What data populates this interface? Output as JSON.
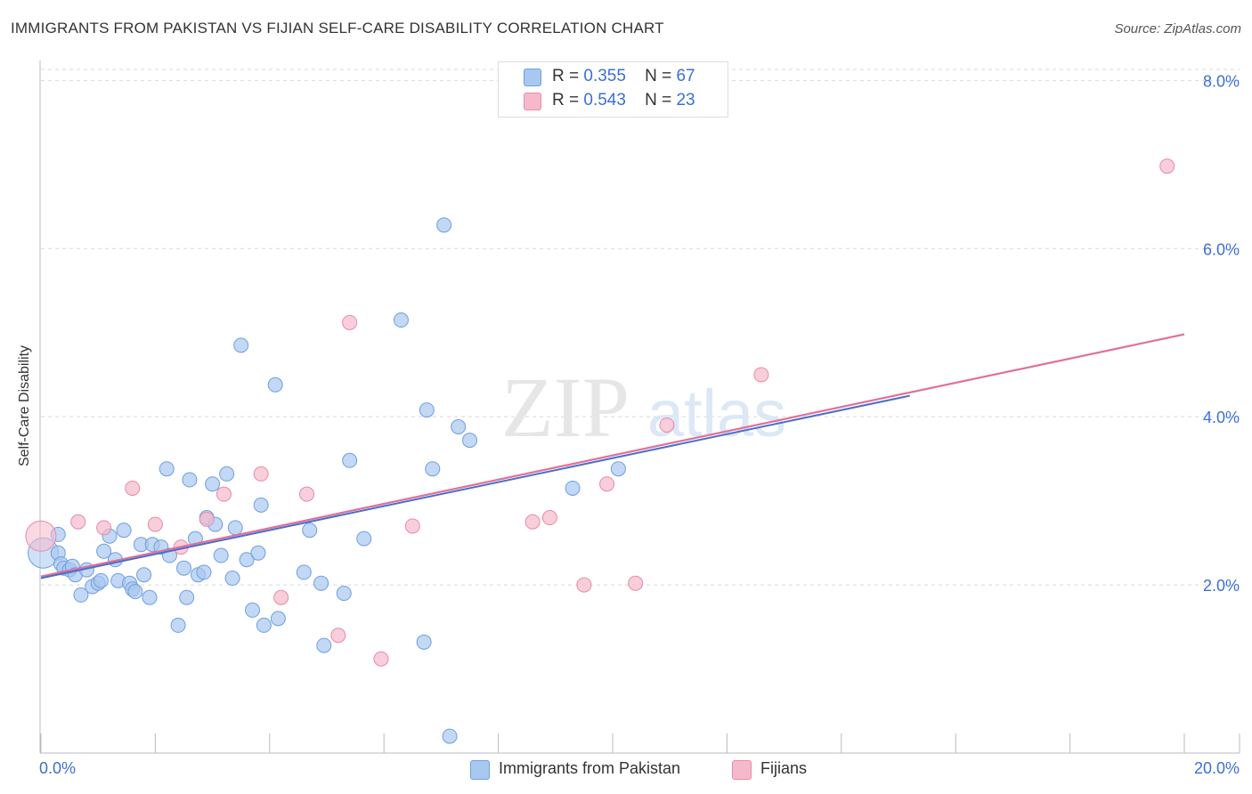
{
  "header": {
    "title": "IMMIGRANTS FROM PAKISTAN VS FIJIAN SELF-CARE DISABILITY CORRELATION CHART",
    "source": "Source: ZipAtlas.com"
  },
  "watermark": {
    "zip": "ZIP",
    "atlas": "atlas"
  },
  "legend": {
    "rows": [
      {
        "r_label": "R =",
        "r_value": "0.355",
        "n_label": "N =",
        "n_value": "67"
      },
      {
        "r_label": "R =",
        "r_value": "0.543",
        "n_label": "N =",
        "n_value": "23"
      }
    ]
  },
  "bottom_legend": {
    "series_a": "Immigrants from Pakistan",
    "series_b": "Fijians"
  },
  "colors": {
    "blue_fill": "#a8c8f0",
    "blue_stroke": "#6f9fe0",
    "blue_line": "#4a6fc7",
    "pink_fill": "#f6b9cc",
    "pink_stroke": "#e98aa8",
    "pink_line": "#e0709a",
    "tick_label": "#3b6fd6",
    "grid": "#d9d9d9"
  },
  "chart_data": {
    "type": "scatter",
    "title": "IMMIGRANTS FROM PAKISTAN VS FIJIAN SELF-CARE DISABILITY CORRELATION CHART",
    "xlabel": "",
    "ylabel": "Self-Care Disability",
    "xlim": [
      0,
      20
    ],
    "ylim": [
      0,
      8.3
    ],
    "x_tick_labels": [
      "0.0%",
      "20.0%"
    ],
    "y_ticks": [
      2,
      4,
      6,
      8
    ],
    "y_tick_labels": [
      "2.0%",
      "4.0%",
      "6.0%",
      "8.0%"
    ],
    "grid": true,
    "legend_position": "top-center",
    "series": [
      {
        "name": "Immigrants from Pakistan",
        "r": 0.355,
        "n": 67,
        "trend": {
          "x0": 0,
          "y0": 2.08,
          "x1": 15.2,
          "y1": 4.25
        },
        "points": [
          {
            "x": 0.04,
            "y": 2.38,
            "big": true
          },
          {
            "x": 0.3,
            "y": 2.6
          },
          {
            "x": 0.3,
            "y": 2.38
          },
          {
            "x": 0.35,
            "y": 2.25
          },
          {
            "x": 0.4,
            "y": 2.2
          },
          {
            "x": 0.5,
            "y": 2.18
          },
          {
            "x": 0.55,
            "y": 2.22
          },
          {
            "x": 0.6,
            "y": 2.12
          },
          {
            "x": 0.7,
            "y": 1.88
          },
          {
            "x": 0.8,
            "y": 2.18
          },
          {
            "x": 0.9,
            "y": 1.98
          },
          {
            "x": 1.0,
            "y": 2.02
          },
          {
            "x": 1.05,
            "y": 2.05
          },
          {
            "x": 1.1,
            "y": 2.4
          },
          {
            "x": 1.2,
            "y": 2.58
          },
          {
            "x": 1.3,
            "y": 2.3
          },
          {
            "x": 1.45,
            "y": 2.65
          },
          {
            "x": 1.35,
            "y": 2.05
          },
          {
            "x": 1.55,
            "y": 2.02
          },
          {
            "x": 1.6,
            "y": 1.95
          },
          {
            "x": 1.65,
            "y": 1.92
          },
          {
            "x": 1.75,
            "y": 2.48
          },
          {
            "x": 1.8,
            "y": 2.12
          },
          {
            "x": 1.9,
            "y": 1.85
          },
          {
            "x": 1.95,
            "y": 2.48
          },
          {
            "x": 2.1,
            "y": 2.45
          },
          {
            "x": 2.2,
            "y": 3.38
          },
          {
            "x": 2.25,
            "y": 2.35
          },
          {
            "x": 2.4,
            "y": 1.52
          },
          {
            "x": 2.5,
            "y": 2.2
          },
          {
            "x": 2.55,
            "y": 1.85
          },
          {
            "x": 2.6,
            "y": 3.25
          },
          {
            "x": 2.7,
            "y": 2.55
          },
          {
            "x": 2.75,
            "y": 2.12
          },
          {
            "x": 2.85,
            "y": 2.15
          },
          {
            "x": 2.9,
            "y": 2.8
          },
          {
            "x": 3.0,
            "y": 3.2
          },
          {
            "x": 3.05,
            "y": 2.72
          },
          {
            "x": 3.15,
            "y": 2.35
          },
          {
            "x": 3.25,
            "y": 3.32
          },
          {
            "x": 3.35,
            "y": 2.08
          },
          {
            "x": 3.4,
            "y": 2.68
          },
          {
            "x": 3.5,
            "y": 4.85
          },
          {
            "x": 3.6,
            "y": 2.3
          },
          {
            "x": 3.7,
            "y": 1.7
          },
          {
            "x": 3.8,
            "y": 2.38
          },
          {
            "x": 3.9,
            "y": 1.52
          },
          {
            "x": 3.85,
            "y": 2.95
          },
          {
            "x": 4.1,
            "y": 4.38
          },
          {
            "x": 4.15,
            "y": 1.6
          },
          {
            "x": 4.6,
            "y": 2.15
          },
          {
            "x": 4.7,
            "y": 2.65
          },
          {
            "x": 4.9,
            "y": 2.02
          },
          {
            "x": 4.95,
            "y": 1.28
          },
          {
            "x": 5.3,
            "y": 1.9
          },
          {
            "x": 5.4,
            "y": 3.48
          },
          {
            "x": 5.65,
            "y": 2.55
          },
          {
            "x": 6.3,
            "y": 5.15
          },
          {
            "x": 6.7,
            "y": 1.32
          },
          {
            "x": 6.75,
            "y": 4.08
          },
          {
            "x": 6.85,
            "y": 3.38
          },
          {
            "x": 7.05,
            "y": 6.28
          },
          {
            "x": 7.15,
            "y": 0.2
          },
          {
            "x": 7.3,
            "y": 3.88
          },
          {
            "x": 7.5,
            "y": 3.72
          },
          {
            "x": 9.3,
            "y": 3.15
          },
          {
            "x": 10.1,
            "y": 3.38
          }
        ]
      },
      {
        "name": "Fijians",
        "r": 0.543,
        "n": 23,
        "trend": {
          "x0": 0,
          "y0": 2.1,
          "x1": 20,
          "y1": 4.98
        },
        "points": [
          {
            "x": 0.0,
            "y": 2.58,
            "big": true
          },
          {
            "x": 0.65,
            "y": 2.75
          },
          {
            "x": 1.1,
            "y": 2.68
          },
          {
            "x": 1.6,
            "y": 3.15
          },
          {
            "x": 2.0,
            "y": 2.72
          },
          {
            "x": 2.45,
            "y": 2.45
          },
          {
            "x": 2.9,
            "y": 2.78
          },
          {
            "x": 3.2,
            "y": 3.08
          },
          {
            "x": 3.85,
            "y": 3.32
          },
          {
            "x": 4.2,
            "y": 1.85
          },
          {
            "x": 4.65,
            "y": 3.08
          },
          {
            "x": 5.4,
            "y": 5.12
          },
          {
            "x": 5.2,
            "y": 1.4
          },
          {
            "x": 5.95,
            "y": 1.12
          },
          {
            "x": 6.5,
            "y": 2.7
          },
          {
            "x": 8.6,
            "y": 2.75
          },
          {
            "x": 8.9,
            "y": 2.8
          },
          {
            "x": 9.5,
            "y": 2.0
          },
          {
            "x": 9.9,
            "y": 3.2
          },
          {
            "x": 10.4,
            "y": 2.02
          },
          {
            "x": 10.95,
            "y": 3.9
          },
          {
            "x": 12.6,
            "y": 4.5
          },
          {
            "x": 19.7,
            "y": 6.98
          }
        ]
      }
    ]
  }
}
